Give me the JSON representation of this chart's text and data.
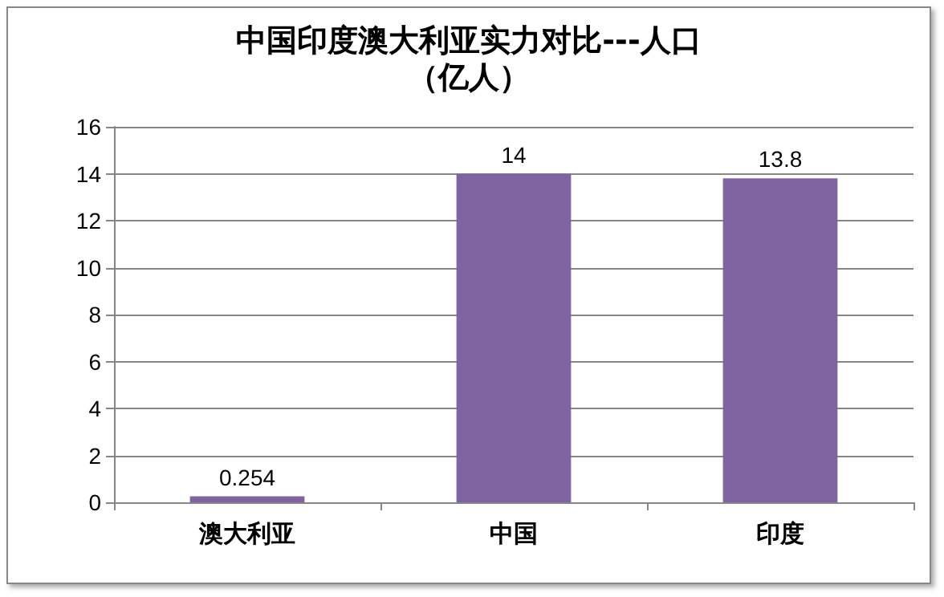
{
  "chart_data": {
    "type": "bar",
    "title": "中国印度澳大利亚实力对比---人口",
    "subtitle": "（亿人）",
    "categories": [
      "澳大利亚",
      "中国",
      "印度"
    ],
    "values": [
      0.254,
      14,
      13.8
    ],
    "color": "#8064a2",
    "ylim": [
      0,
      16
    ],
    "yticks": [
      0,
      2,
      4,
      6,
      8,
      10,
      12,
      14,
      16
    ],
    "grid": "y",
    "data_labels": true
  }
}
